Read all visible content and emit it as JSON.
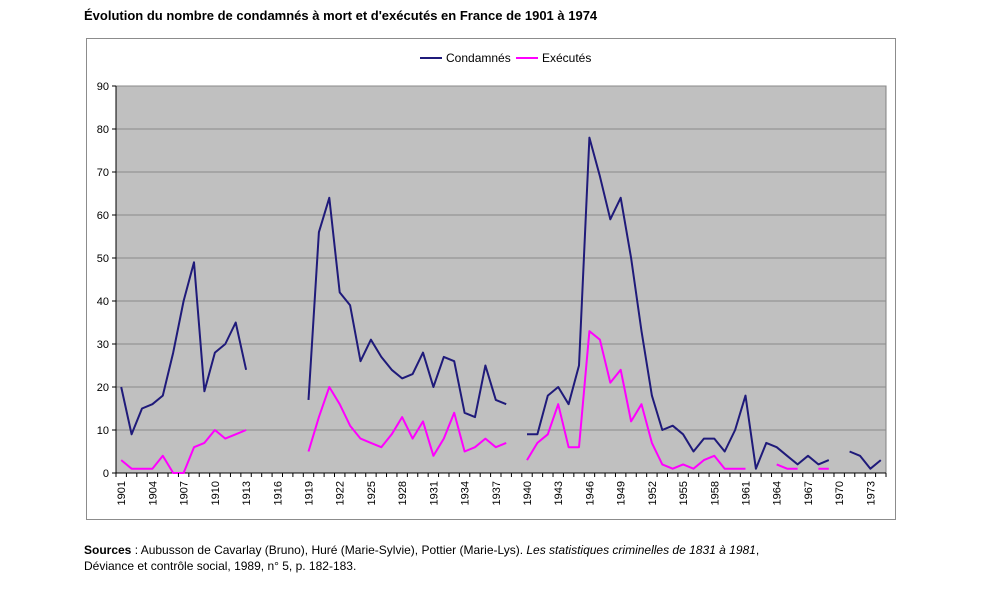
{
  "figure": {
    "title": "Évolution du nombre de condamnés à mort et d'exécutés en France de 1901 à 1974"
  },
  "sources": {
    "label": "Sources",
    "before": " : Aubusson de Cavarlay (Bruno), Huré (Marie-Sylvie), Pottier (Marie-Lys). ",
    "italic": "Les statistiques criminelles de 1831 à 1981",
    "after": ",",
    "line2": "Déviance et contrôle social, 1989, n° 5, p. 182-183."
  },
  "chart_data": {
    "type": "line",
    "title": "Évolution du nombre de condamnés à mort et d'exécutés en France de 1901 à 1974",
    "xlabel": "",
    "ylabel": "",
    "xlim": [
      1901,
      1974
    ],
    "ylim": [
      0,
      90
    ],
    "yticks": [
      0,
      10,
      20,
      30,
      40,
      50,
      60,
      70,
      80,
      90
    ],
    "xtick_labels": [
      "1901",
      "1904",
      "1907",
      "1910",
      "1913",
      "1916",
      "1919",
      "1922",
      "1925",
      "1928",
      "1931",
      "1934",
      "1937",
      "1940",
      "1943",
      "1946",
      "1949",
      "1952",
      "1955",
      "1958",
      "1961",
      "1964",
      "1967",
      "1970",
      "1973"
    ],
    "grid": true,
    "legend_position": "top-center",
    "plot_background": "#c0c0c0",
    "series": [
      {
        "name": "Condamnés",
        "color": "#1f1a7a",
        "x": [
          1901,
          1902,
          1903,
          1904,
          1905,
          1906,
          1907,
          1908,
          1909,
          1910,
          1911,
          1912,
          1913,
          1914,
          1915,
          1916,
          1917,
          1918,
          1919,
          1920,
          1921,
          1922,
          1923,
          1924,
          1925,
          1926,
          1927,
          1928,
          1929,
          1930,
          1931,
          1932,
          1933,
          1934,
          1935,
          1936,
          1937,
          1938,
          1939,
          1940,
          1941,
          1942,
          1943,
          1944,
          1945,
          1946,
          1947,
          1948,
          1949,
          1950,
          1951,
          1952,
          1953,
          1954,
          1955,
          1956,
          1957,
          1958,
          1959,
          1960,
          1961,
          1962,
          1963,
          1964,
          1965,
          1966,
          1967,
          1968,
          1969,
          1970,
          1971,
          1972,
          1973,
          1974
        ],
        "values": [
          20,
          9,
          15,
          16,
          18,
          28,
          40,
          49,
          19,
          28,
          30,
          35,
          24,
          null,
          null,
          null,
          null,
          null,
          17,
          56,
          64,
          42,
          39,
          26,
          31,
          27,
          24,
          22,
          23,
          28,
          20,
          27,
          26,
          14,
          13,
          25,
          17,
          16,
          null,
          9,
          9,
          18,
          20,
          16,
          25,
          78,
          69,
          59,
          64,
          50,
          33,
          18,
          10,
          11,
          9,
          5,
          8,
          8,
          5,
          10,
          18,
          1,
          7,
          6,
          4,
          2,
          4,
          2,
          3,
          null,
          5,
          4,
          1,
          3
        ]
      },
      {
        "name": "Exécutés",
        "color": "#ff00ff",
        "x": [
          1901,
          1902,
          1903,
          1904,
          1905,
          1906,
          1907,
          1908,
          1909,
          1910,
          1911,
          1912,
          1913,
          1914,
          1915,
          1916,
          1917,
          1918,
          1919,
          1920,
          1921,
          1922,
          1923,
          1924,
          1925,
          1926,
          1927,
          1928,
          1929,
          1930,
          1931,
          1932,
          1933,
          1934,
          1935,
          1936,
          1937,
          1938,
          1939,
          1940,
          1941,
          1942,
          1943,
          1944,
          1945,
          1946,
          1947,
          1948,
          1949,
          1950,
          1951,
          1952,
          1953,
          1954,
          1955,
          1956,
          1957,
          1958,
          1959,
          1960,
          1961,
          1962,
          1963,
          1964,
          1965,
          1966,
          1967,
          1968,
          1969,
          1970,
          1971,
          1972,
          1973,
          1974
        ],
        "values": [
          3,
          1,
          1,
          1,
          4,
          0,
          0,
          6,
          7,
          10,
          8,
          9,
          10,
          null,
          null,
          null,
          null,
          null,
          5,
          13,
          20,
          16,
          11,
          8,
          7,
          6,
          9,
          13,
          8,
          12,
          4,
          8,
          14,
          5,
          6,
          8,
          6,
          7,
          null,
          3,
          7,
          9,
          16,
          6,
          6,
          33,
          31,
          21,
          24,
          12,
          16,
          7,
          2,
          1,
          2,
          1,
          3,
          4,
          1,
          1,
          1,
          null,
          null,
          2,
          1,
          1,
          null,
          1,
          1,
          null,
          null,
          null,
          null,
          null
        ]
      }
    ]
  }
}
